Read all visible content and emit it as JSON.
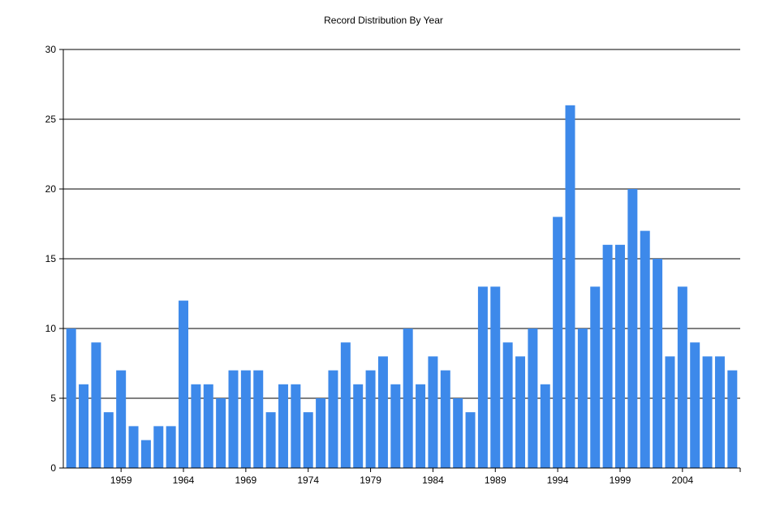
{
  "chart_data": {
    "type": "bar",
    "title": "Record Distribution By Year",
    "xlabel": "",
    "ylabel": "",
    "ylim": [
      0,
      30
    ],
    "yticks": [
      0,
      5,
      10,
      15,
      20,
      25,
      30
    ],
    "grid": true,
    "legend": "none",
    "color": "#3d89ea",
    "categories": [
      1955,
      1956,
      1957,
      1958,
      1959,
      1960,
      1961,
      1962,
      1963,
      1964,
      1965,
      1966,
      1967,
      1968,
      1969,
      1970,
      1971,
      1972,
      1973,
      1974,
      1975,
      1976,
      1977,
      1978,
      1979,
      1980,
      1981,
      1982,
      1983,
      1984,
      1985,
      1986,
      1987,
      1988,
      1989,
      1990,
      1991,
      1992,
      1993,
      1994,
      1995,
      1996,
      1997,
      1998,
      1999,
      2000,
      2001,
      2002,
      2003,
      2004,
      2005,
      2006,
      2007,
      2008
    ],
    "x_tick_labels": [
      1959,
      1964,
      1969,
      1974,
      1979,
      1984,
      1989,
      1994,
      1999,
      2004
    ],
    "values": [
      10,
      6,
      9,
      4,
      7,
      3,
      2,
      3,
      3,
      12,
      6,
      6,
      5,
      7,
      7,
      7,
      4,
      6,
      6,
      4,
      5,
      7,
      9,
      6,
      7,
      8,
      6,
      10,
      6,
      8,
      7,
      5,
      4,
      13,
      13,
      9,
      8,
      10,
      6,
      18,
      26,
      10,
      13,
      16,
      16,
      20,
      17,
      15,
      8,
      13,
      9,
      8,
      8,
      7
    ]
  }
}
